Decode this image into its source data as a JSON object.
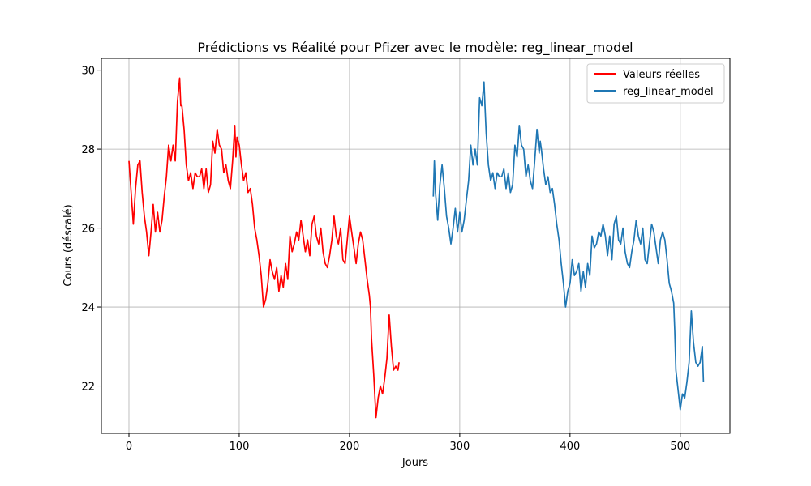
{
  "chart_data": {
    "type": "line",
    "title": "Prédictions vs Réalité pour Pfizer avec le modèle: reg_linear_model",
    "xlabel": "Jours",
    "ylabel": "Cours (déscalé)",
    "xlim": [
      -25,
      545
    ],
    "ylim": [
      20.8,
      30.3
    ],
    "xticks": [
      0,
      100,
      200,
      300,
      400,
      500
    ],
    "yticks": [
      22,
      24,
      26,
      28,
      30
    ],
    "grid": true,
    "legend_position": "top-right",
    "series": [
      {
        "name": "Valeurs réelles",
        "color": "#ff0000",
        "x": [
          0,
          2,
          4,
          6,
          8,
          10,
          12,
          14,
          16,
          18,
          20,
          22,
          24,
          26,
          28,
          30,
          32,
          34,
          36,
          38,
          40,
          42,
          44,
          46,
          47,
          48,
          50,
          52,
          54,
          56,
          58,
          60,
          62,
          64,
          66,
          68,
          70,
          72,
          74,
          76,
          78,
          80,
          82,
          84,
          86,
          88,
          90,
          92,
          94,
          96,
          97,
          98,
          100,
          102,
          104,
          106,
          108,
          110,
          112,
          114,
          116,
          118,
          120,
          122,
          124,
          126,
          128,
          130,
          132,
          134,
          136,
          138,
          140,
          142,
          144,
          146,
          148,
          150,
          152,
          154,
          156,
          158,
          160,
          162,
          164,
          166,
          168,
          170,
          172,
          174,
          176,
          178,
          180,
          182,
          184,
          186,
          188,
          190,
          192,
          194,
          196,
          198,
          200,
          202,
          204,
          206,
          208,
          210,
          212,
          214,
          216,
          218,
          219,
          220,
          222,
          224,
          226,
          228,
          230,
          232,
          234,
          236,
          238,
          240,
          242,
          244,
          245
        ],
        "y": [
          27.7,
          26.9,
          26.1,
          27.0,
          27.6,
          27.7,
          26.9,
          26.3,
          25.9,
          25.3,
          25.9,
          26.6,
          25.9,
          26.4,
          25.9,
          26.2,
          26.8,
          27.3,
          28.1,
          27.7,
          28.1,
          27.7,
          29.2,
          29.8,
          29.1,
          29.1,
          28.5,
          27.6,
          27.2,
          27.4,
          27.0,
          27.4,
          27.3,
          27.3,
          27.5,
          27.0,
          27.5,
          26.9,
          27.1,
          28.2,
          27.9,
          28.5,
          28.1,
          28.0,
          27.4,
          27.6,
          27.2,
          27.0,
          27.7,
          28.6,
          27.8,
          28.3,
          28.1,
          27.6,
          27.2,
          27.4,
          26.9,
          27.0,
          26.6,
          26.0,
          25.7,
          25.3,
          24.8,
          24.0,
          24.2,
          24.6,
          25.2,
          24.9,
          24.7,
          25.0,
          24.4,
          24.8,
          24.5,
          25.1,
          24.7,
          25.8,
          25.4,
          25.6,
          25.9,
          25.7,
          26.2,
          25.8,
          25.4,
          25.7,
          25.3,
          26.1,
          26.3,
          25.8,
          25.6,
          26.0,
          25.4,
          25.1,
          25.0,
          25.3,
          25.7,
          26.3,
          25.8,
          25.6,
          26.0,
          25.2,
          25.1,
          25.7,
          26.3,
          25.9,
          25.5,
          25.1,
          25.6,
          25.9,
          25.7,
          25.2,
          24.7,
          24.3,
          24.0,
          23.2,
          22.3,
          21.2,
          21.7,
          22.0,
          21.8,
          22.2,
          22.7,
          23.8,
          23.0,
          22.4,
          22.5,
          22.4,
          22.6
        ]
      },
      {
        "name": "reg_linear_model",
        "color": "#1f77b4",
        "x": [
          276,
          277,
          278,
          280,
          282,
          284,
          286,
          288,
          290,
          292,
          294,
          296,
          298,
          300,
          302,
          304,
          306,
          308,
          310,
          312,
          314,
          316,
          318,
          320,
          322,
          323,
          324,
          326,
          328,
          330,
          332,
          334,
          336,
          338,
          340,
          342,
          344,
          346,
          348,
          350,
          352,
          354,
          356,
          358,
          360,
          362,
          364,
          366,
          368,
          370,
          372,
          373,
          374,
          376,
          378,
          380,
          382,
          384,
          386,
          388,
          390,
          392,
          394,
          396,
          398,
          400,
          402,
          404,
          406,
          408,
          410,
          412,
          414,
          416,
          418,
          420,
          422,
          424,
          426,
          428,
          430,
          432,
          434,
          436,
          438,
          440,
          442,
          444,
          446,
          448,
          450,
          452,
          454,
          456,
          458,
          460,
          462,
          464,
          466,
          468,
          470,
          472,
          474,
          476,
          478,
          480,
          482,
          484,
          486,
          488,
          490,
          492,
          494,
          495,
          496,
          498,
          500,
          502,
          504,
          506,
          508,
          510,
          512,
          514,
          516,
          518,
          520,
          521
        ],
        "y": [
          26.8,
          27.7,
          26.9,
          26.2,
          27.1,
          27.6,
          27.0,
          26.3,
          26.0,
          25.6,
          26.0,
          26.5,
          25.9,
          26.4,
          25.9,
          26.2,
          26.7,
          27.2,
          28.1,
          27.6,
          28.0,
          27.6,
          29.3,
          29.1,
          29.7,
          29.0,
          28.4,
          27.6,
          27.2,
          27.4,
          27.0,
          27.4,
          27.3,
          27.3,
          27.5,
          27.0,
          27.4,
          26.9,
          27.1,
          28.1,
          27.8,
          28.6,
          28.1,
          28.0,
          27.3,
          27.6,
          27.2,
          27.0,
          27.7,
          28.5,
          27.9,
          28.2,
          28.0,
          27.5,
          27.1,
          27.3,
          26.9,
          27.0,
          26.6,
          26.1,
          25.7,
          25.1,
          24.6,
          24.0,
          24.4,
          24.6,
          25.2,
          24.8,
          24.9,
          25.1,
          24.4,
          24.9,
          24.5,
          25.1,
          24.8,
          25.8,
          25.5,
          25.6,
          25.9,
          25.8,
          26.1,
          25.8,
          25.3,
          25.8,
          25.2,
          26.1,
          26.3,
          25.7,
          25.6,
          26.0,
          25.4,
          25.1,
          25.0,
          25.4,
          25.7,
          26.2,
          25.8,
          25.6,
          26.0,
          25.2,
          25.1,
          25.6,
          26.1,
          25.9,
          25.5,
          25.1,
          25.7,
          25.9,
          25.7,
          25.2,
          24.6,
          24.4,
          24.1,
          23.4,
          22.4,
          21.9,
          21.4,
          21.8,
          21.7,
          22.1,
          22.6,
          23.9,
          23.1,
          22.6,
          22.5,
          22.6,
          23.0,
          22.1
        ]
      }
    ]
  }
}
